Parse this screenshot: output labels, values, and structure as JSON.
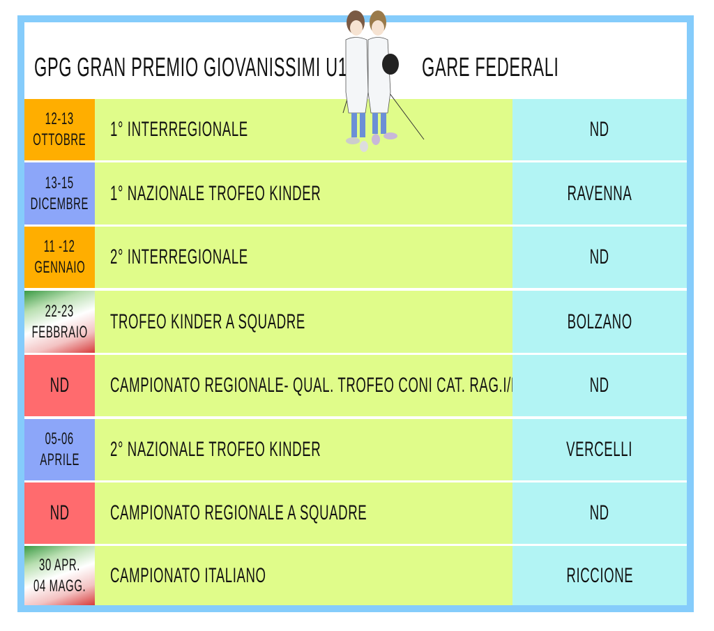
{
  "header": {
    "title_left": "GPG Gran Premio Giovanissimi U14",
    "title_right": "Gare Federali"
  },
  "colors": {
    "border": "#85ccfb",
    "orange": "#ffae00",
    "blue": "#8ca6f9",
    "red": "#ff6b6e",
    "event_bg": "#e0fc8a",
    "location_bg": "#b2f4f4"
  },
  "rows": [
    {
      "date1": "12-13",
      "date2": "Ottobre",
      "event": "1° Interregionale",
      "location": "ND",
      "date_color": "orange"
    },
    {
      "date1": "13-15",
      "date2": "Dicembre",
      "event": "1° Nazionale Trofeo Kinder",
      "location": "Ravenna",
      "date_color": "blue"
    },
    {
      "date1": "11 -12",
      "date2": "Gennaio",
      "event": "2° Interregionale",
      "location": "ND",
      "date_color": "orange"
    },
    {
      "date1": "22-23",
      "date2": "Febbraio",
      "event": "Trofeo Kinder a Squadre",
      "location": "Bolzano",
      "date_color": "italian-flag"
    },
    {
      "date1": "ND",
      "date2": "",
      "event": "Campionato Regionale- Qual. Trofeo Coni Cat. Rag.i/e",
      "location": "ND",
      "date_color": "red"
    },
    {
      "date1": "05-06",
      "date2": "Aprile",
      "event": "2° Nazionale Trofeo Kinder",
      "location": "Vercelli",
      "date_color": "blue"
    },
    {
      "date1": "ND",
      "date2": "",
      "event": "Campionato Regionale a Squadre",
      "location": "ND",
      "date_color": "red"
    },
    {
      "date1": "30 Apr.",
      "date2": "04 Magg.",
      "event": "Campionato Italiano",
      "location": "Riccione",
      "date_color": "italian-flag"
    }
  ]
}
